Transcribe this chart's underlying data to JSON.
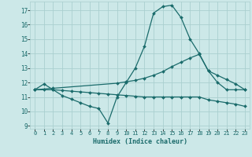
{
  "xlabel": "Humidex (Indice chaleur)",
  "ylabel": "",
  "background_color": "#cce8e8",
  "grid_color": "#aacfcf",
  "line_color": "#1a6b6b",
  "xlim": [
    -0.5,
    23.5
  ],
  "ylim": [
    8.8,
    17.6
  ],
  "yticks": [
    9,
    10,
    11,
    12,
    13,
    14,
    15,
    16,
    17
  ],
  "xticks": [
    0,
    1,
    2,
    3,
    4,
    5,
    6,
    7,
    8,
    9,
    10,
    11,
    12,
    13,
    14,
    15,
    16,
    17,
    18,
    19,
    20,
    21,
    22,
    23
  ],
  "line1_x": [
    0,
    1,
    2,
    3,
    4,
    5,
    6,
    7,
    8,
    9,
    10,
    11,
    12,
    13,
    14,
    15,
    16,
    17,
    18,
    19,
    20,
    21,
    22,
    23
  ],
  "line1_y": [
    11.5,
    11.9,
    11.5,
    11.1,
    10.85,
    10.6,
    10.35,
    10.2,
    9.2,
    11.0,
    12.0,
    13.0,
    14.5,
    16.8,
    17.25,
    17.35,
    16.5,
    15.0,
    14.0,
    12.8,
    12.0,
    11.5,
    11.5,
    11.5
  ],
  "line2_x": [
    0,
    2,
    9,
    10,
    11,
    12,
    13,
    14,
    15,
    16,
    17,
    18,
    19,
    20,
    21,
    22,
    23
  ],
  "line2_y": [
    11.5,
    11.6,
    11.95,
    12.05,
    12.15,
    12.3,
    12.5,
    12.75,
    13.1,
    13.4,
    13.7,
    13.95,
    12.8,
    12.5,
    12.2,
    11.9,
    11.5
  ],
  "line3_x": [
    0,
    1,
    2,
    3,
    4,
    5,
    6,
    7,
    8,
    9,
    10,
    11,
    12,
    13,
    14,
    15,
    16,
    17,
    18,
    19,
    20,
    21,
    22,
    23
  ],
  "line3_y": [
    11.5,
    11.5,
    11.5,
    11.45,
    11.4,
    11.35,
    11.3,
    11.25,
    11.2,
    11.15,
    11.1,
    11.05,
    11.0,
    11.0,
    11.0,
    11.0,
    11.0,
    11.0,
    11.0,
    10.8,
    10.7,
    10.6,
    10.5,
    10.35
  ]
}
